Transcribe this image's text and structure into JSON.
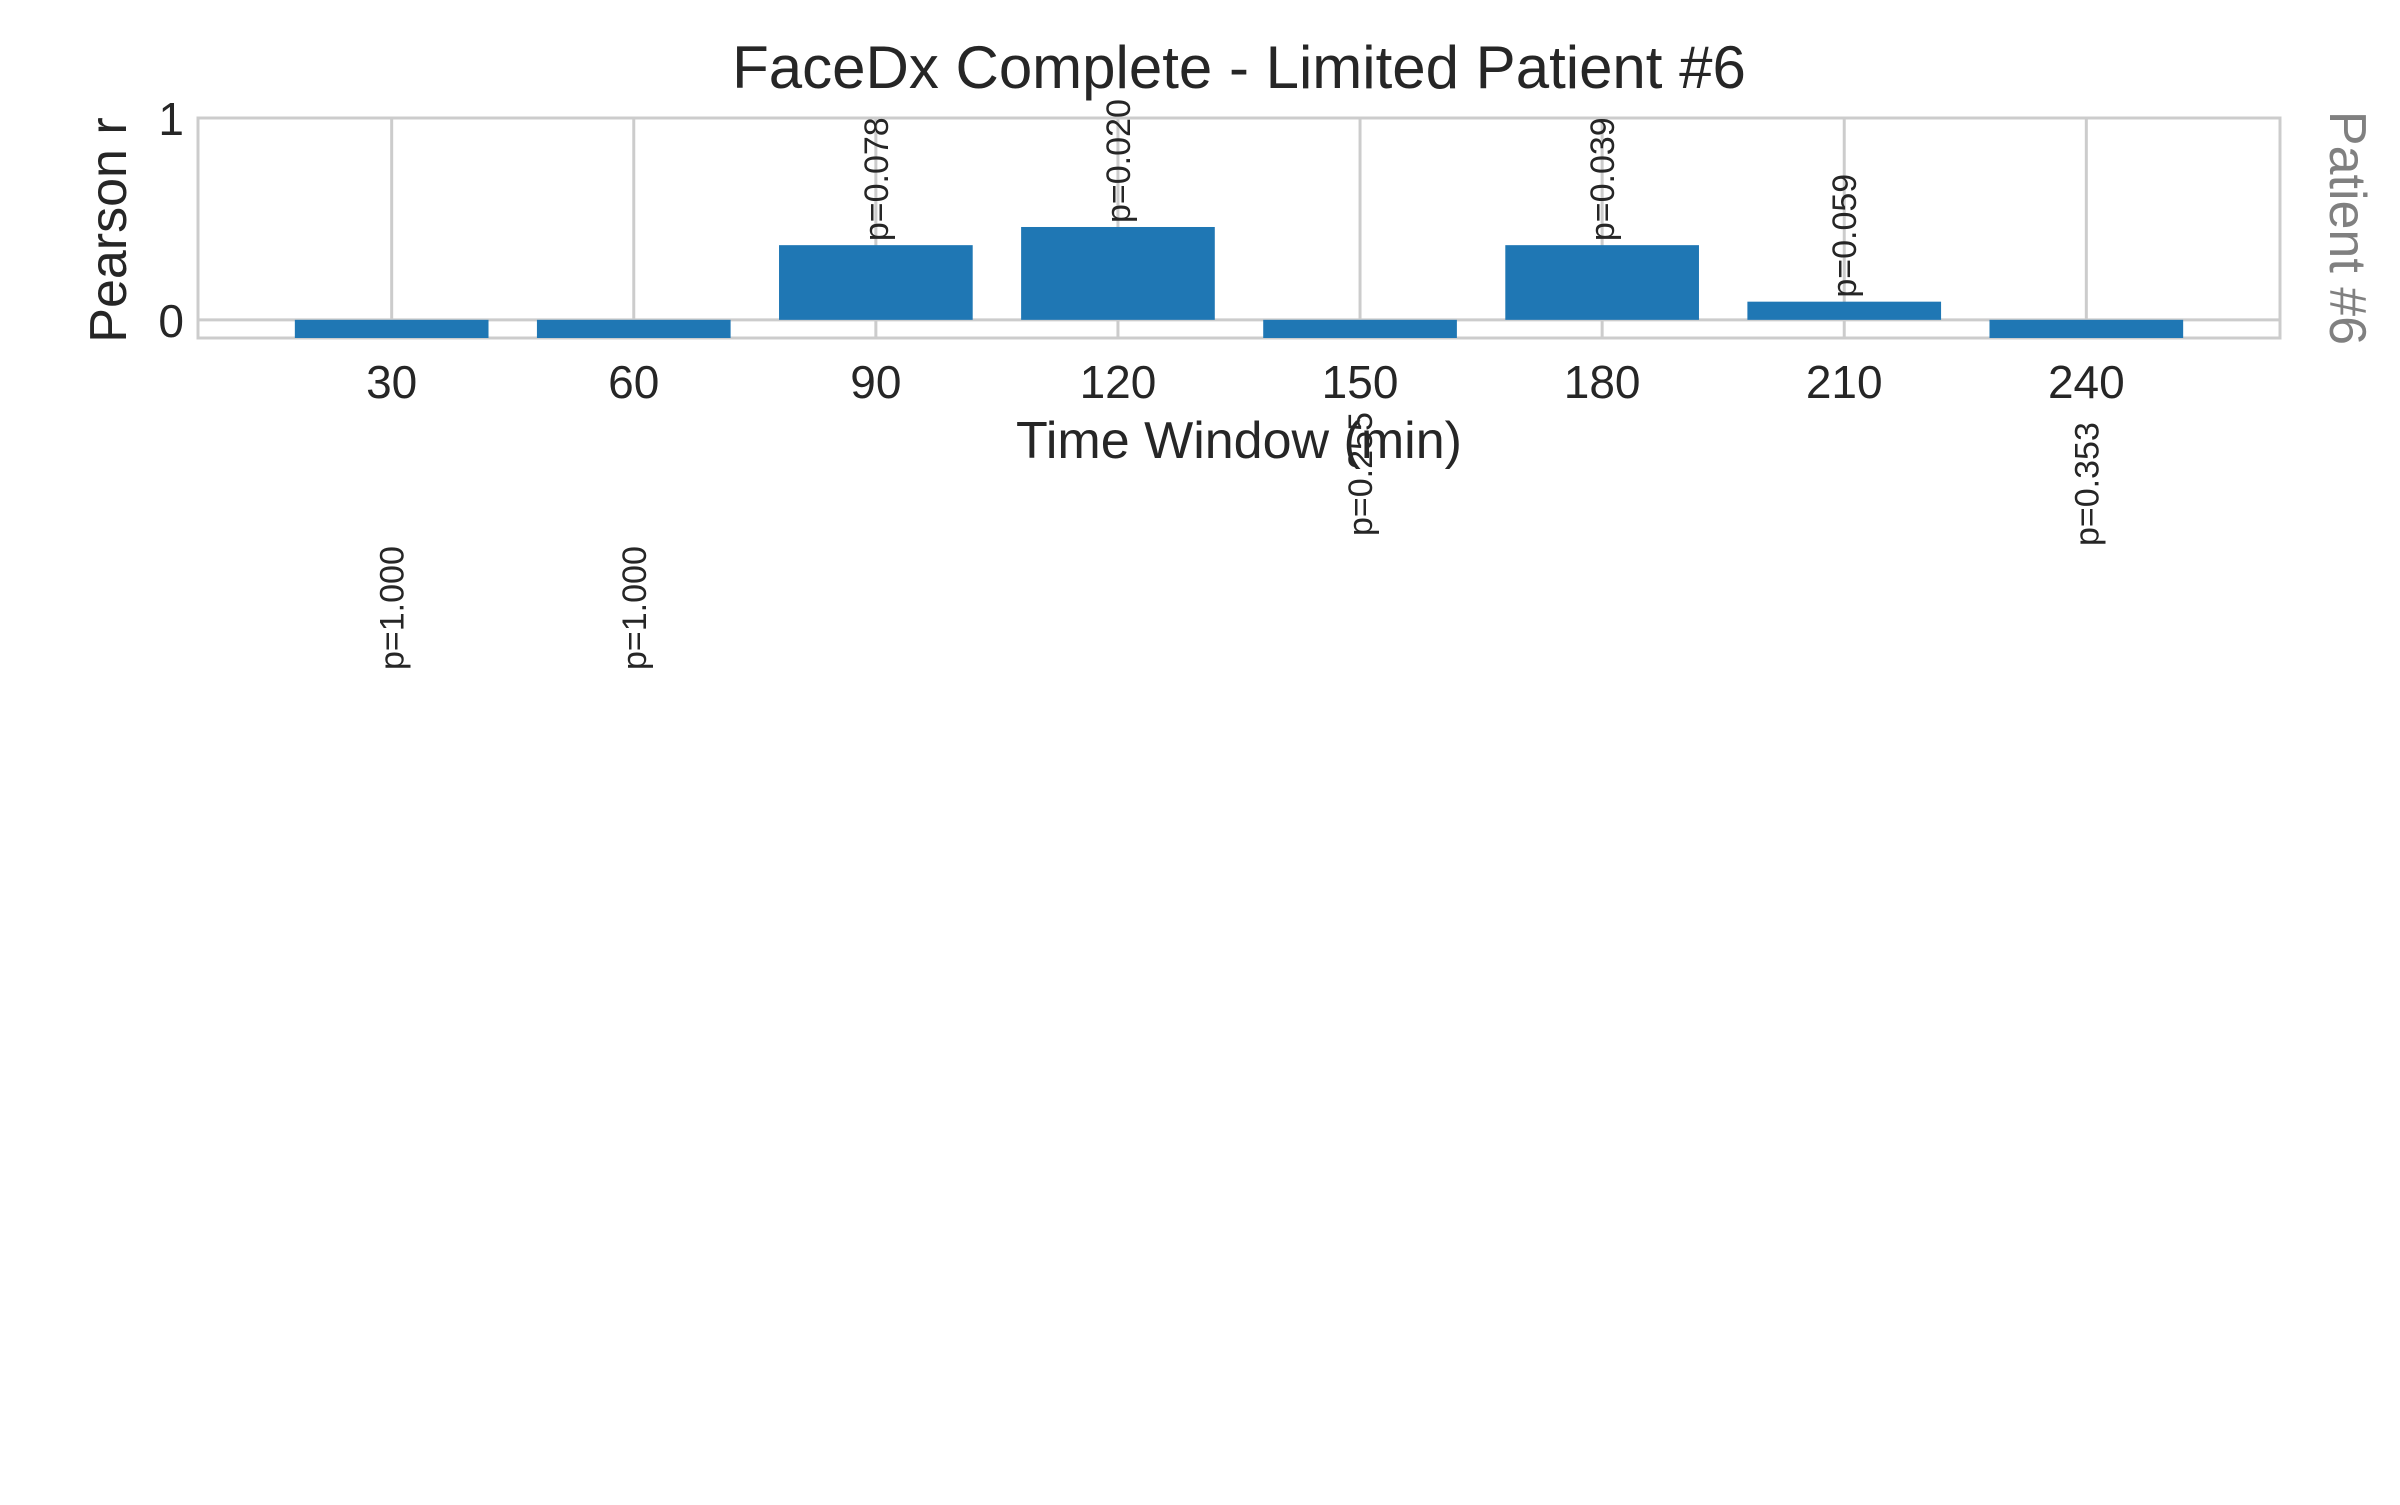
{
  "chart_data": {
    "type": "bar",
    "title": "FaceDx Complete - Limited Patient #6",
    "xlabel": "Time Window (min)",
    "ylabel": "Pearson r",
    "side_label": "Patient #6",
    "categories": [
      "30",
      "60",
      "90",
      "120",
      "150",
      "180",
      "210",
      "240"
    ],
    "values": [
      -0.09,
      -0.09,
      0.37,
      0.46,
      -0.09,
      0.37,
      0.09,
      -0.09
    ],
    "bar_labels": [
      "p=1.000",
      "p=1.000",
      "p=0.078",
      "p=0.020",
      "p=0.255",
      "p=0.039",
      "p=0.059",
      "p=0.353"
    ],
    "yticks": [
      "0",
      "1"
    ],
    "ylim": [
      -0.09,
      1.0
    ],
    "grid": true,
    "colors": {
      "bar": "#1f77b4",
      "grid": "#cccccc",
      "axis": "#cccccc",
      "text": "#262626",
      "side_label": "#808080"
    }
  }
}
